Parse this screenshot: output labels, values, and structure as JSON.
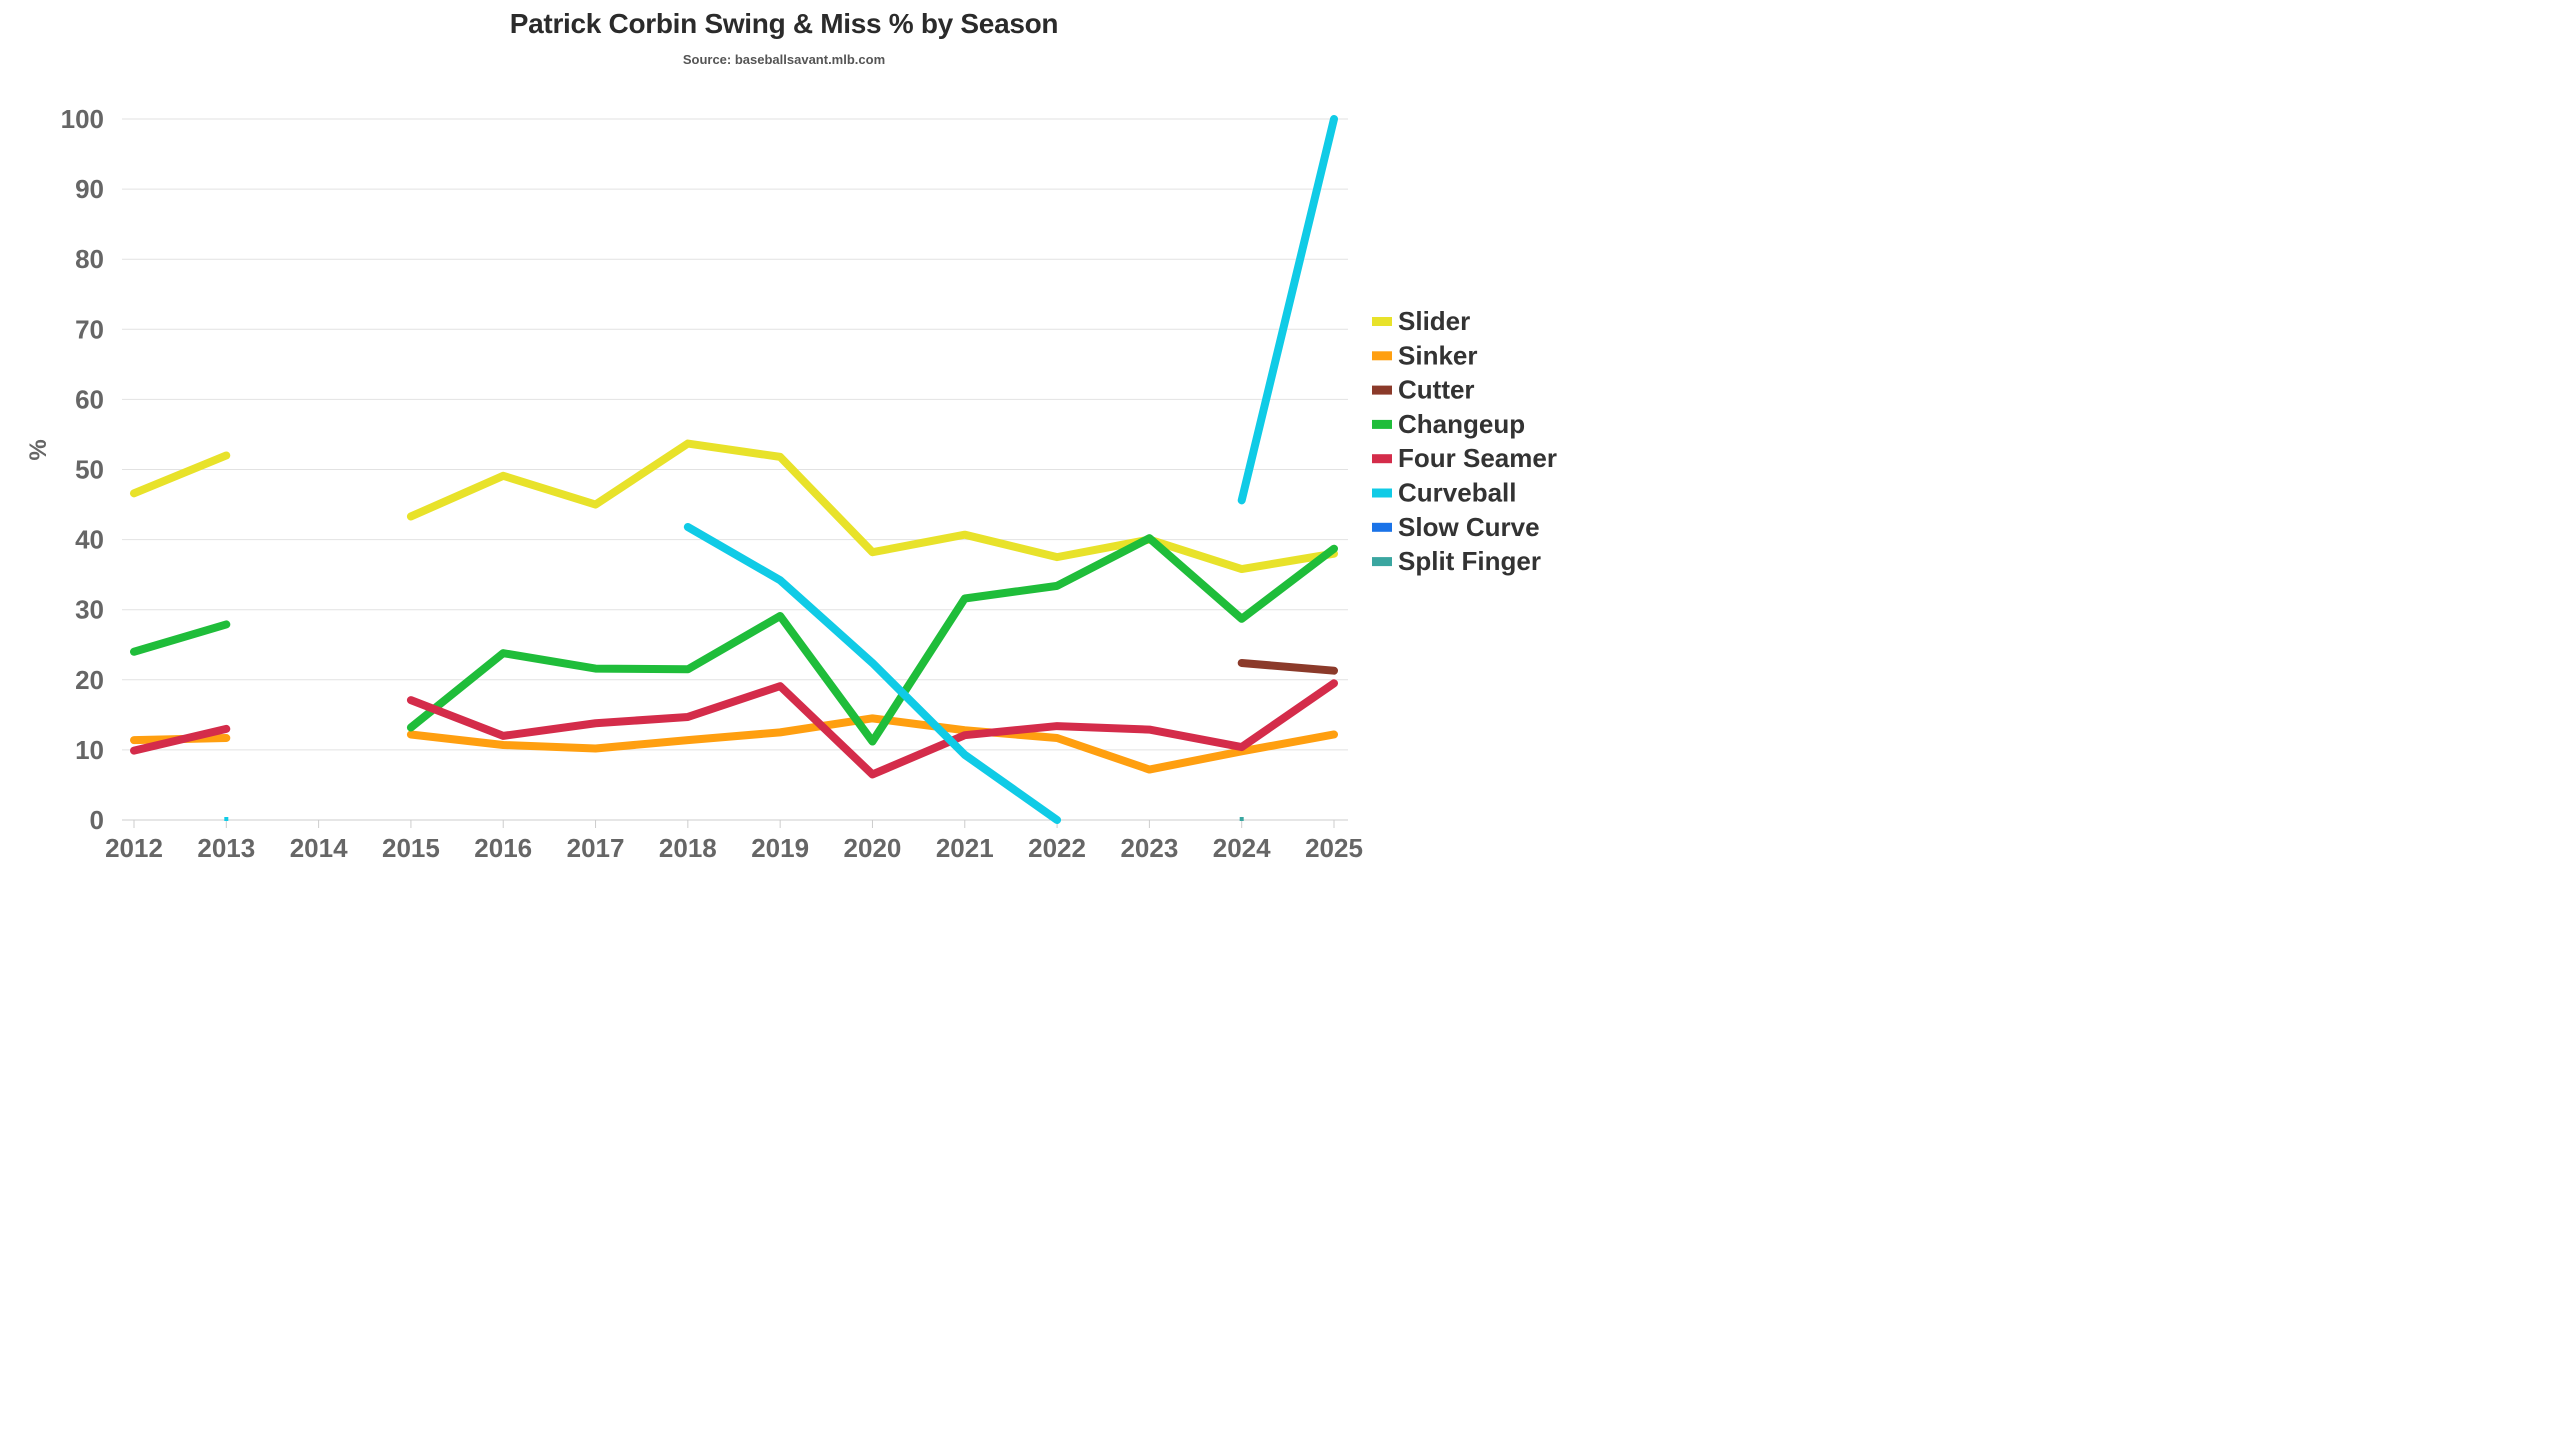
{
  "chart_data": {
    "type": "line",
    "title": "Patrick Corbin Swing & Miss % by Season",
    "subtitle": "Source: baseballsavant.mlb.com",
    "ylabel": "%",
    "xlabel": "",
    "ylim": [
      0,
      100
    ],
    "yticks": [
      "0",
      "10",
      "20",
      "30",
      "40",
      "50",
      "60",
      "70",
      "80",
      "90",
      "100"
    ],
    "x": [
      "2012",
      "2013",
      "2014",
      "2015",
      "2016",
      "2017",
      "2018",
      "2019",
      "2020",
      "2021",
      "2022",
      "2023",
      "2024",
      "2025"
    ],
    "grid": true,
    "legend_position": "right",
    "series": [
      {
        "name": "Slider",
        "color": "#e8e22a",
        "values": [
          46.6,
          52.0,
          null,
          43.3,
          49.1,
          45.0,
          53.7,
          51.8,
          38.2,
          40.7,
          37.5,
          40.0,
          35.8,
          38.0
        ]
      },
      {
        "name": "Sinker",
        "color": "#ff9f10",
        "values": [
          11.4,
          11.7,
          null,
          12.2,
          10.7,
          10.2,
          11.4,
          12.5,
          14.5,
          12.8,
          11.7,
          7.2,
          9.8,
          12.2
        ]
      },
      {
        "name": "Cutter",
        "color": "#8b3a2a",
        "values": [
          null,
          null,
          null,
          null,
          null,
          null,
          null,
          null,
          null,
          null,
          null,
          null,
          22.4,
          21.3
        ]
      },
      {
        "name": "Changeup",
        "color": "#1fbd3a",
        "values": [
          24.0,
          27.9,
          null,
          13.2,
          23.8,
          21.6,
          21.5,
          29.1,
          11.2,
          31.6,
          33.4,
          40.2,
          28.7,
          38.7
        ]
      },
      {
        "name": "Four Seamer",
        "color": "#d42c4a",
        "values": [
          9.9,
          13.0,
          null,
          17.1,
          12.0,
          13.8,
          14.7,
          19.1,
          6.5,
          12.1,
          13.4,
          12.9,
          10.4,
          19.5
        ]
      },
      {
        "name": "Curveball",
        "color": "#10cbe6",
        "values": [
          null,
          0.0,
          null,
          null,
          null,
          null,
          41.8,
          34.2,
          22.4,
          9.3,
          0.0,
          null,
          45.6,
          100.0
        ]
      },
      {
        "name": "Slow Curve",
        "color": "#1a73e8",
        "values": [
          null,
          null,
          null,
          null,
          null,
          null,
          null,
          null,
          null,
          null,
          null,
          null,
          null,
          null
        ]
      },
      {
        "name": "Split Finger",
        "color": "#3aa6a0",
        "values": [
          null,
          null,
          null,
          null,
          null,
          null,
          null,
          null,
          null,
          null,
          null,
          null,
          0.0,
          null
        ]
      }
    ]
  }
}
